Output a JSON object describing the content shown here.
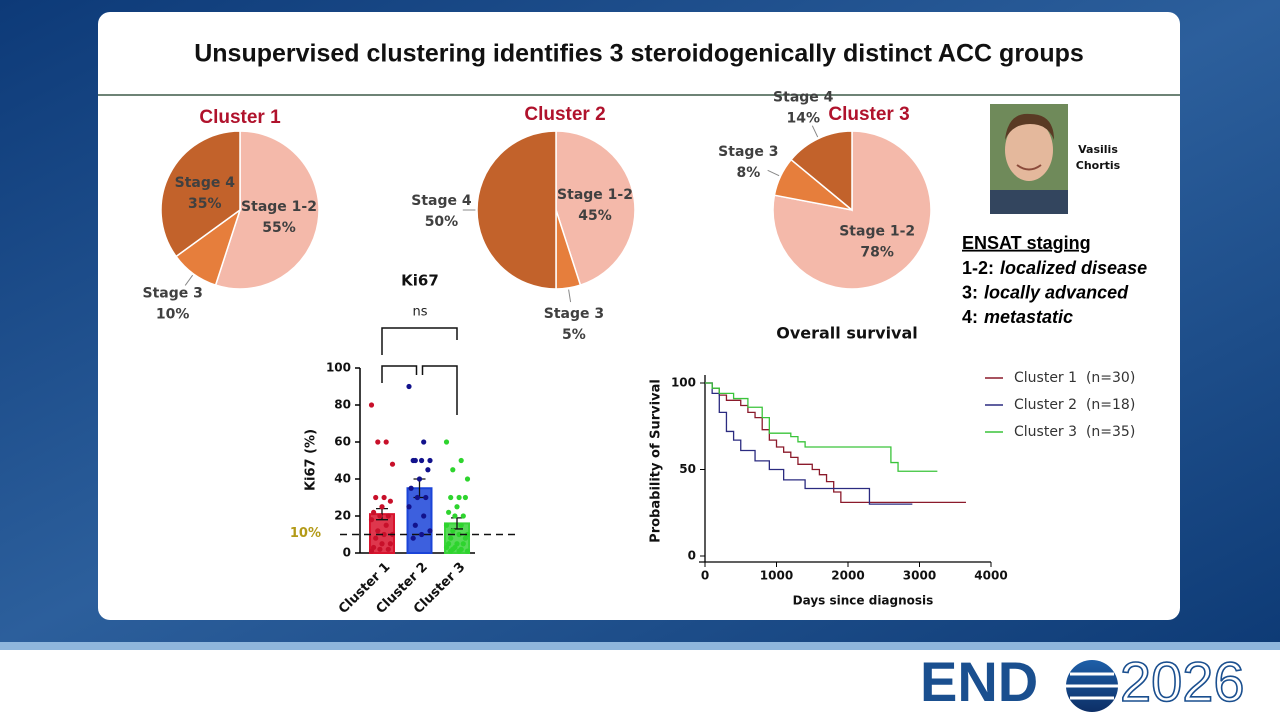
{
  "slide": {
    "title": "Unsupervised clustering identifies 3 steroidogenically distinct ACC groups",
    "presenter": [
      "Vasilis",
      "Chortis"
    ],
    "ensat": {
      "title": "ENSAT staging",
      "lines": [
        {
          "term": "1-2:",
          "desc": "localized disease"
        },
        {
          "term": "3:",
          "desc": "locally advanced"
        },
        {
          "term": "4:",
          "desc": "metastatic"
        }
      ]
    },
    "logo": {
      "left": "END",
      "right": "2026"
    }
  },
  "chart_data": [
    {
      "type": "pie",
      "title": "Cluster 1",
      "categories": [
        "Stage 1-2",
        "Stage 3",
        "Stage 4"
      ],
      "values": [
        55,
        10,
        35
      ],
      "value_labels": [
        "55%",
        "10%",
        "35%"
      ],
      "colors": [
        "#f4b9aa",
        "#e67e3c",
        "#c2622b"
      ]
    },
    {
      "type": "pie",
      "title": "Cluster 2",
      "categories": [
        "Stage 1-2",
        "Stage 3",
        "Stage 4"
      ],
      "values": [
        45,
        5,
        50
      ],
      "value_labels": [
        "45%",
        "5%",
        "50%"
      ],
      "colors": [
        "#f4b9aa",
        "#e67e3c",
        "#c2622b"
      ]
    },
    {
      "type": "pie",
      "title": "Cluster 3",
      "categories": [
        "Stage 1-2",
        "Stage 3",
        "Stage 4"
      ],
      "values": [
        78,
        8,
        14
      ],
      "value_labels": [
        "78%",
        "8%",
        "14%"
      ],
      "colors": [
        "#f4b9aa",
        "#e67e3c",
        "#c2622b"
      ]
    },
    {
      "type": "bar",
      "title": "Ki67",
      "y_label": "Ki67 (%)",
      "categories": [
        "Cluster 1",
        "Cluster 2",
        "Cluster 3"
      ],
      "values": [
        21,
        35,
        16
      ],
      "errors": [
        3,
        5,
        3
      ],
      "colors": [
        "#d8142e",
        "#1b44d8",
        "#3ad43a"
      ],
      "point_colors": [
        "#c8102a",
        "#12128c",
        "#2ed42e"
      ],
      "points": [
        [
          80,
          60,
          60,
          48,
          30,
          30,
          28,
          25,
          22,
          20,
          20,
          18,
          15,
          12,
          10,
          10,
          8,
          5,
          5,
          3,
          2,
          2,
          1
        ],
        [
          90,
          60,
          50,
          50,
          50,
          50,
          45,
          40,
          35,
          30,
          30,
          25,
          20,
          15,
          12,
          10,
          8
        ],
        [
          60,
          50,
          45,
          40,
          30,
          30,
          30,
          25,
          22,
          20,
          20,
          15,
          15,
          12,
          10,
          10,
          8,
          8,
          5,
          5,
          5,
          3,
          3,
          2,
          2,
          1,
          1,
          1
        ]
      ],
      "ylim": [
        0,
        100
      ],
      "yticks": [
        0,
        20,
        40,
        60,
        80,
        100
      ],
      "reference_line": {
        "value": 10,
        "label": "10%"
      },
      "annotation": "ns"
    },
    {
      "type": "line",
      "title": "Overall survival",
      "x_label": "Days since diagnosis",
      "y_label": "Probability of Survival",
      "step": true,
      "xlim": [
        0,
        4000
      ],
      "xticks": [
        0,
        1000,
        2000,
        3000,
        4000
      ],
      "ylim": [
        0,
        100
      ],
      "yticks": [
        0,
        50,
        100
      ],
      "series": [
        {
          "name": "Cluster 1  (n=30)",
          "color": "#8b1a2b",
          "x": [
            0,
            100,
            200,
            300,
            400,
            500,
            600,
            700,
            800,
            900,
            1000,
            1100,
            1200,
            1300,
            1500,
            1600,
            1700,
            1800,
            1900,
            2300,
            3000,
            3650
          ],
          "values": [
            100,
            97,
            93,
            90,
            90,
            87,
            83,
            80,
            73,
            67,
            63,
            60,
            57,
            53,
            50,
            47,
            43,
            37,
            31,
            31,
            31,
            31
          ]
        },
        {
          "name": "Cluster 2  (n=18)",
          "color": "#2b2b80",
          "x": [
            0,
            100,
            200,
            300,
            400,
            500,
            700,
            900,
            1100,
            1300,
            1400,
            1800,
            2300,
            2900
          ],
          "values": [
            100,
            94,
            83,
            72,
            67,
            61,
            55,
            50,
            44,
            44,
            39,
            39,
            30,
            30
          ]
        },
        {
          "name": "Cluster 3  (n=35)",
          "color": "#3ac43a",
          "x": [
            0,
            100,
            200,
            400,
            600,
            800,
            900,
            1200,
            1300,
            1400,
            1500,
            2500,
            2600,
            2700,
            3250
          ],
          "values": [
            100,
            97,
            94,
            91,
            86,
            80,
            71,
            69,
            66,
            63,
            63,
            63,
            54,
            49,
            49
          ]
        }
      ]
    }
  ]
}
